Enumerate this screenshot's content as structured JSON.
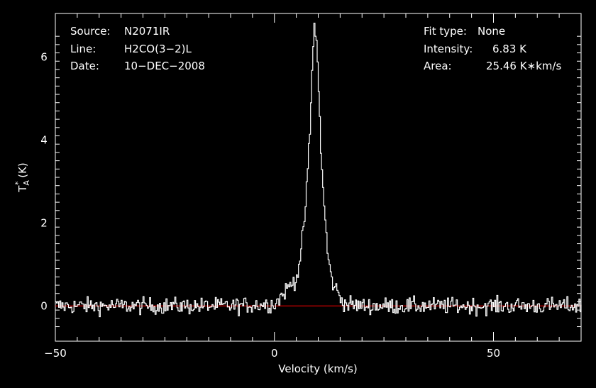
{
  "chart_data": {
    "type": "line",
    "xlabel": "Velocity (km/s)",
    "ylabel_main": "T",
    "ylabel_sup": "*",
    "ylabel_sub": "A",
    "ylabel_unit": " (K)",
    "xlim": [
      -50,
      70
    ],
    "ylim": [
      -0.85,
      7.05
    ],
    "xticks": [
      -50,
      0,
      50
    ],
    "yticks": [
      0,
      2,
      4,
      6
    ],
    "xtick_labels": [
      "−50",
      "0",
      "50"
    ],
    "ytick_labels": [
      "0",
      "2",
      "4",
      "6"
    ],
    "grid": false,
    "series": [
      {
        "style": "step",
        "color": "#ffffff",
        "x": [
          -50,
          -20,
          -10,
          0,
          2,
          3,
          4,
          5,
          6,
          7,
          8,
          8.5,
          9,
          9.5,
          10,
          10.5,
          11,
          12,
          13,
          14,
          15,
          16,
          20,
          30,
          40,
          50,
          60,
          70
        ],
        "y": [
          0,
          0,
          0,
          0.05,
          0.3,
          0.45,
          0.55,
          0.7,
          1.3,
          2.4,
          4.2,
          5.6,
          6.83,
          6.4,
          5.2,
          3.8,
          2.8,
          1.3,
          0.6,
          0.4,
          0.2,
          0.05,
          0,
          0,
          0,
          0,
          0,
          0
        ]
      }
    ],
    "baseline": {
      "y": 0,
      "color": "#ff0000"
    }
  },
  "annotations": {
    "left": [
      {
        "key": "Source:",
        "value": "N2071IR"
      },
      {
        "key": "Line:",
        "value": "H2CO(3−2)L"
      },
      {
        "key": "Date:",
        "value": "10−DEC−2008"
      }
    ],
    "right": [
      {
        "key": "Fit type:",
        "value": "None"
      },
      {
        "key": "Intensity:",
        "value": "6.83 K"
      },
      {
        "key": "Area:",
        "value": "25.46 K∗km/s"
      }
    ]
  },
  "colors": {
    "background": "#000000",
    "foreground": "#ffffff",
    "baseline": "#ff0000"
  }
}
